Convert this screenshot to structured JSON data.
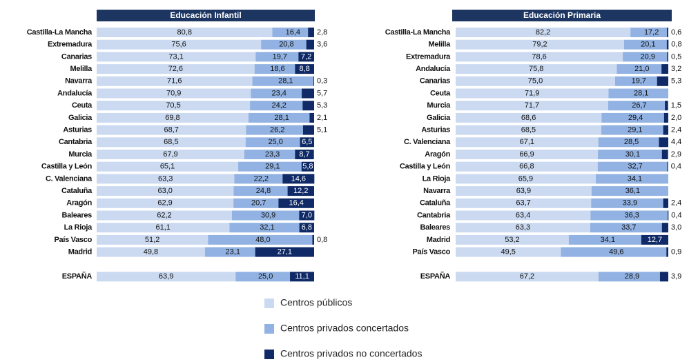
{
  "chart_data": [
    {
      "type": "stacked-bar-horizontal",
      "title": "Educación Infantil",
      "xlim": [
        0,
        100
      ],
      "categories": [
        "Castilla-La Mancha",
        "Extremadura",
        "Canarias",
        "Melilla",
        "Navarra",
        "Andalucía",
        "Ceuta",
        "Galicia",
        "Asturias",
        "Cantabria",
        "Murcia",
        "Castilla y León",
        "C. Valenciana",
        "Cataluña",
        "Aragón",
        "Baleares",
        "La Rioja",
        "País Vasco",
        "Madrid",
        "ESPAÑA"
      ],
      "series": [
        {
          "name": "Centros públicos",
          "color": "#cbdaf1",
          "values": [
            80.8,
            75.6,
            73.1,
            72.6,
            71.6,
            70.9,
            70.5,
            69.8,
            68.7,
            68.5,
            67.9,
            65.1,
            63.3,
            63.0,
            62.9,
            62.2,
            61.1,
            51.2,
            49.8,
            63.9
          ],
          "value_labels": [
            "80,8",
            "75,6",
            "73,1",
            "72,6",
            "71,6",
            "70,9",
            "70,5",
            "69,8",
            "68,7",
            "68,5",
            "67,9",
            "65,1",
            "63,3",
            "63,0",
            "62,9",
            "62,2",
            "61,1",
            "51,2",
            "49,8",
            "63,9"
          ]
        },
        {
          "name": "Centros privados concertados",
          "color": "#91b2e2",
          "values": [
            16.4,
            20.8,
            19.7,
            18.6,
            28.1,
            23.4,
            24.2,
            28.1,
            26.2,
            25.0,
            23.3,
            29.1,
            22.2,
            24.8,
            20.7,
            30.9,
            32.1,
            48.0,
            23.1,
            25.0
          ],
          "value_labels": [
            "16,4",
            "20,8",
            "19,7",
            "18,6",
            "28,1",
            "23,4",
            "24,2",
            "28,1",
            "26,2",
            "25,0",
            "23,3",
            "29,1",
            "22,2",
            "24,8",
            "20,7",
            "30,9",
            "32,1",
            "48,0",
            "23,1",
            "25,0"
          ]
        },
        {
          "name": "Centros privados no concertados",
          "color": "#0f2a66",
          "values": [
            2.8,
            3.6,
            7.2,
            8.8,
            0.3,
            5.7,
            5.3,
            2.1,
            5.1,
            6.5,
            8.7,
            5.8,
            14.6,
            12.2,
            16.4,
            7.0,
            6.8,
            0.8,
            27.1,
            11.1
          ],
          "value_labels": [
            "2,8",
            "3,6",
            "7,2",
            "8,8",
            "0,3",
            "5,7",
            "5,3",
            "2,1",
            "5,1",
            "6,5",
            "8,7",
            "5,8",
            "14,6",
            "12,2",
            "16,4",
            "7,0",
            "6,8",
            "0,8",
            "27,1",
            "11,1"
          ]
        }
      ]
    },
    {
      "type": "stacked-bar-horizontal",
      "title": "Educación Primaria",
      "xlim": [
        0,
        100
      ],
      "categories": [
        "Castilla-La Mancha",
        "Melilla",
        "Extremadura",
        "Andalucía",
        "Canarias",
        "Ceuta",
        "Murcia",
        "Galicia",
        "Asturias",
        "C. Valenciana",
        "Aragón",
        "Castilla y León",
        "La Rioja",
        "Navarra",
        "Cataluña",
        "Cantabria",
        "Baleares",
        "Madrid",
        "País Vasco",
        "ESPAÑA"
      ],
      "series": [
        {
          "color": "#cbdaf1",
          "values": [
            82.2,
            79.2,
            78.6,
            75.8,
            75.0,
            71.9,
            71.7,
            68.6,
            68.5,
            67.1,
            66.9,
            66.8,
            65.9,
            63.9,
            63.7,
            63.4,
            63.3,
            53.2,
            49.5,
            67.2
          ],
          "value_labels": [
            "82,2",
            "79,2",
            "78,6",
            "75,8",
            "75,0",
            "71,9",
            "71,7",
            "68,6",
            "68,5",
            "67,1",
            "66,9",
            "66,8",
            "65,9",
            "63,9",
            "63,7",
            "63,4",
            "63,3",
            "53,2",
            "49,5",
            "67,2"
          ]
        },
        {
          "color": "#91b2e2",
          "values": [
            17.2,
            20.1,
            20.9,
            21.0,
            19.7,
            28.1,
            26.7,
            29.4,
            29.1,
            28.5,
            30.1,
            32.7,
            34.1,
            36.1,
            33.9,
            36.3,
            33.7,
            34.1,
            49.6,
            28.9
          ],
          "value_labels": [
            "17,2",
            "20,1",
            "20,9",
            "21,0",
            "19,7",
            "28,1",
            "26,7",
            "29,4",
            "29,1",
            "28,5",
            "30,1",
            "32,7",
            "34,1",
            "36,1",
            "33,9",
            "36,3",
            "33,7",
            "34,1",
            "49,6",
            "28,9"
          ]
        },
        {
          "color": "#0f2a66",
          "values": [
            0.6,
            0.8,
            0.5,
            3.2,
            5.3,
            null,
            1.5,
            2.0,
            2.4,
            4.4,
            2.9,
            0.4,
            null,
            null,
            2.4,
            0.4,
            3.0,
            12.7,
            0.9,
            3.9
          ],
          "value_labels": [
            "0,6",
            "0,8",
            "0,5",
            "3,2",
            "5,3",
            null,
            "1,5",
            "2,0",
            "2,4",
            "4,4",
            "2,9",
            "0,4",
            null,
            null,
            "2,4",
            "0,4",
            "3,0",
            "12,7",
            "0,9",
            "3,9"
          ]
        }
      ]
    }
  ]
}
